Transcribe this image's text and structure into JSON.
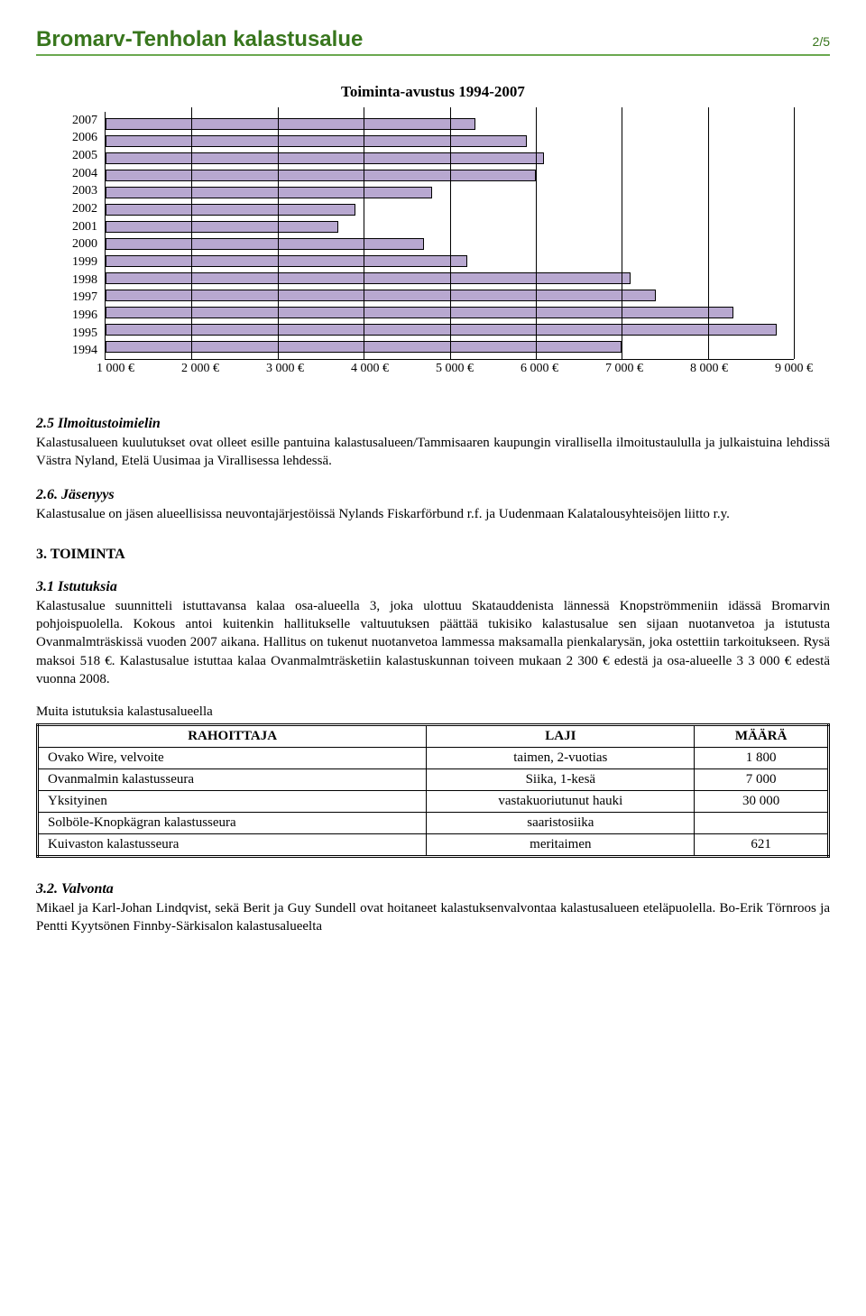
{
  "header": {
    "title": "Bromarv-Tenholan kalastusalue",
    "page": "2/5"
  },
  "chart": {
    "type": "horizontal-bar",
    "title": "Toiminta-avustus 1994-2007",
    "categories": [
      "2007",
      "2006",
      "2005",
      "2004",
      "2003",
      "2002",
      "2001",
      "2000",
      "1999",
      "1998",
      "1997",
      "1996",
      "1995",
      "1994"
    ],
    "values": [
      5300,
      5900,
      6100,
      6000,
      4800,
      3900,
      3700,
      4700,
      5200,
      7100,
      7400,
      8300,
      8800,
      7000
    ],
    "bar_fill": "#b8a8d0",
    "bar_border": "#000000",
    "x_min": 1000,
    "x_max": 9000,
    "x_ticks": [
      1000,
      2000,
      3000,
      4000,
      5000,
      6000,
      7000,
      8000,
      9000
    ],
    "x_tick_labels": [
      "1 000 €",
      "2 000 €",
      "3 000 €",
      "4 000 €",
      "5 000 €",
      "6 000 €",
      "7 000 €",
      "8 000 €",
      "9 000 €"
    ],
    "title_fontsize": 17,
    "label_fontsize": 14,
    "background": "#ffffff",
    "grid_color": "#000000"
  },
  "sec25": {
    "heading": "2.5  Ilmoitustoimielin",
    "body": "Kalastusalueen kuulutukset ovat olleet esille pantuina kalastusalueen/Tammisaaren kaupungin virallisella ilmoitustaululla ja julkaistuina lehdissä Västra Nyland, Etelä Uusimaa ja Virallisessa lehdessä."
  },
  "sec26": {
    "heading": "2.6. Jäsenyys",
    "body": "Kalastusalue on jäsen alueellisissa neuvontajärjestöissä Nylands Fiskarförbund r.f. ja Uudenmaan Kalatalousyhteisöjen liitto r.y."
  },
  "sec3": {
    "heading": "3.  TOIMINTA"
  },
  "sec31": {
    "heading": "3.1  Istutuksia",
    "body": "Kalastusalue suunnitteli istuttavansa kalaa osa-alueella 3, joka ulottuu Skatauddenista lännessä Knopströmmeniin idässä Bromarvin pohjoispuolella. Kokous antoi kuitenkin hallitukselle valtuutuksen päättää tukisiko kalastusalue sen sijaan nuotanvetoa ja istutusta Ovanmalmträskissä vuoden 2007 aikana. Hallitus on tukenut nuotanvetoa lammessa maksamalla pienkalarysän, joka ostettiin tarkoitukseen. Rysä maksoi 518 €. Kalastusalue istuttaa kalaa Ovanmalmträsketiin kalastuskunnan toiveen mukaan 2 300 € edestä ja osa-alueelle 3 3 000 € edestä vuonna 2008."
  },
  "table": {
    "intro": "Muita istutuksia kalastusalueella",
    "columns": [
      "RAHOITTAJA",
      "LAJI",
      "MÄÄRÄ"
    ],
    "rows": [
      [
        "Ovako Wire, velvoite",
        "taimen, 2-vuotias",
        "1 800"
      ],
      [
        "Ovanmalmin kalastusseura",
        "Siika, 1-kesä",
        "7 000"
      ],
      [
        "Yksityinen",
        "vastakuoriutunut hauki",
        "30 000"
      ],
      [
        "Solböle-Knopkägran kalastusseura",
        "saaristosiika",
        ""
      ],
      [
        "Kuivaston kalastusseura",
        "meritaimen",
        "621"
      ]
    ]
  },
  "sec32": {
    "heading": "3.2.  Valvonta",
    "body": "Mikael ja Karl-Johan Lindqvist, sekä Berit ja Guy Sundell ovat hoitaneet kalastuksenvalvontaa kalastusalueen eteläpuolella. Bo-Erik Törnroos ja Pentti Kyytsönen Finnby-Särkisalon kalastusalueelta"
  }
}
